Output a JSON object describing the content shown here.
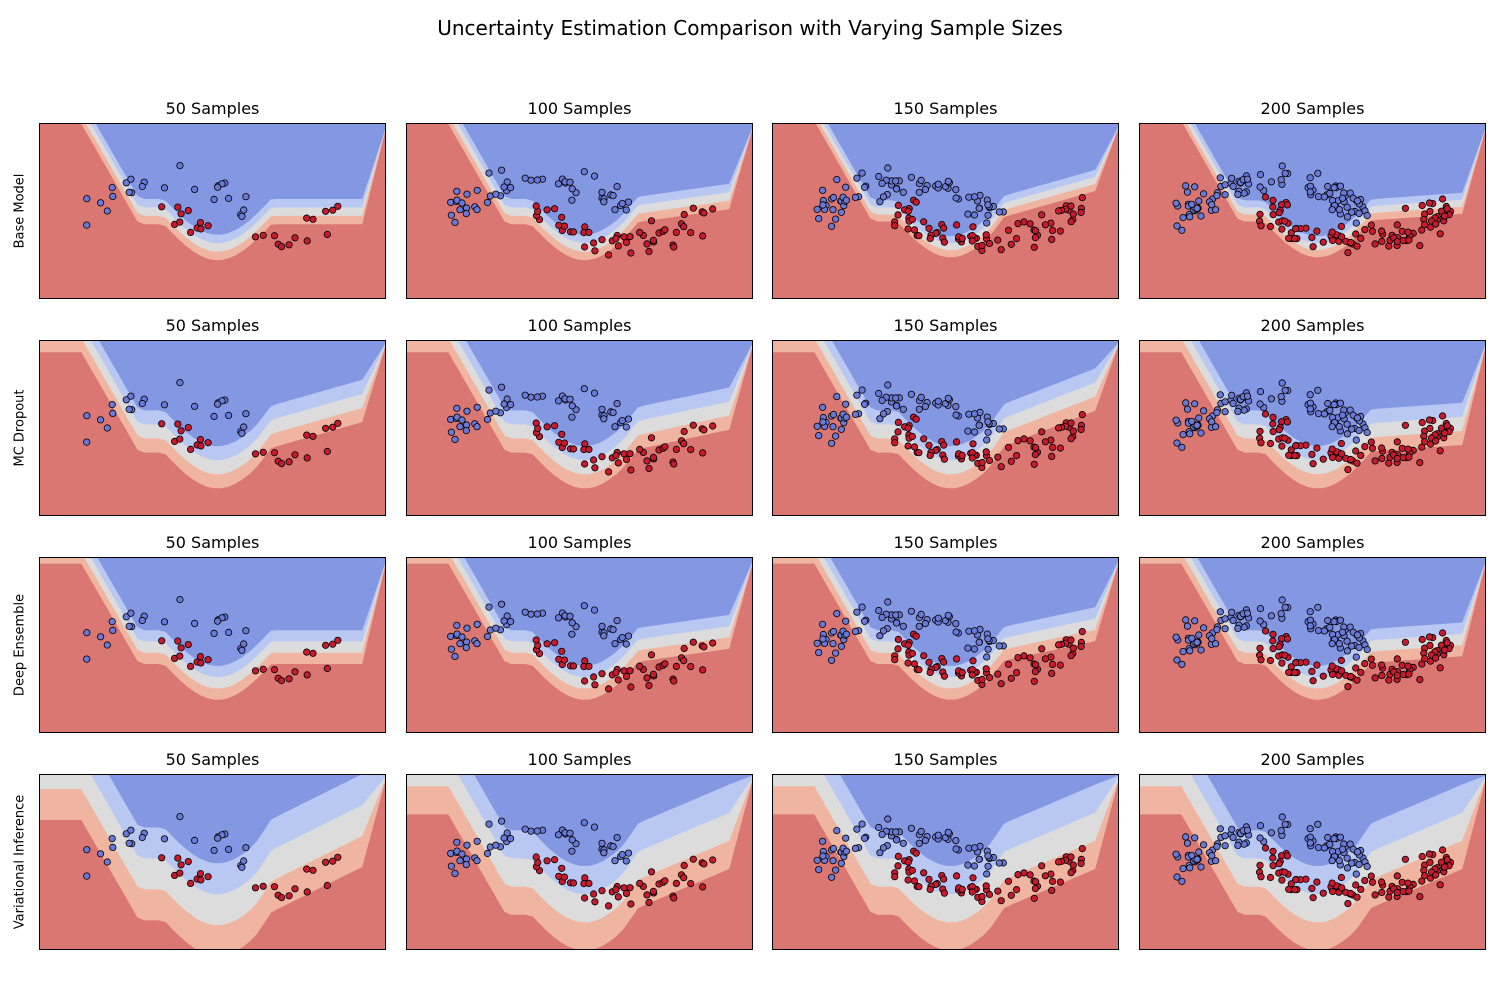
{
  "figure": {
    "title": "Uncertainty Estimation Comparison with Varying Sample Sizes"
  },
  "colors": {
    "class0_region": "#8497e2",
    "class1_region": "#db7772",
    "class0_point": "#6a79d6",
    "class1_point": "#c41b2f",
    "boundary_light": "#dddcdc",
    "point_edge": "#000000"
  },
  "chart_data": {
    "type": "scatter",
    "subtype": "classification-uncertainty-contour-grid",
    "grid": {
      "rows": 4,
      "cols": 4
    },
    "x_range": [
      -1.6,
      2.6
    ],
    "y_range": [
      -1.1,
      1.6
    ],
    "axes_ticks": "none",
    "legend": "none",
    "row_labels": [
      "Base Model",
      "MC Dropout",
      "Deep Ensemble",
      "Variational Inference"
    ],
    "column_titles": [
      "50 Samples",
      "100 Samples",
      "150 Samples",
      "200 Samples"
    ],
    "sample_sizes": [
      50,
      100,
      150,
      200
    ],
    "dataset": "two interleaving half-moons (class 0 = upper arc, class 1 = lower arc)",
    "panels": [
      {
        "row": 0,
        "col": 0,
        "method": "Base Model",
        "samples": 50,
        "uncertainty_band": 0.06,
        "boundary_tilt": 0.0
      },
      {
        "row": 0,
        "col": 1,
        "method": "Base Model",
        "samples": 100,
        "uncertainty_band": 0.06,
        "boundary_tilt": 0.2
      },
      {
        "row": 0,
        "col": 2,
        "method": "Base Model",
        "samples": 150,
        "uncertainty_band": 0.05,
        "boundary_tilt": 0.4
      },
      {
        "row": 0,
        "col": 3,
        "method": "Base Model",
        "samples": 200,
        "uncertainty_band": 0.05,
        "boundary_tilt": 0.1
      },
      {
        "row": 1,
        "col": 0,
        "method": "MC Dropout",
        "samples": 50,
        "uncertainty_band": 0.1,
        "boundary_tilt": 0.4
      },
      {
        "row": 1,
        "col": 1,
        "method": "MC Dropout",
        "samples": 100,
        "uncertainty_band": 0.1,
        "boundary_tilt": 0.3
      },
      {
        "row": 1,
        "col": 2,
        "method": "MC Dropout",
        "samples": 150,
        "uncertainty_band": 0.1,
        "boundary_tilt": 0.55
      },
      {
        "row": 1,
        "col": 3,
        "method": "MC Dropout",
        "samples": 200,
        "uncertainty_band": 0.1,
        "boundary_tilt": 0.1
      },
      {
        "row": 2,
        "col": 0,
        "method": "Deep Ensemble",
        "samples": 50,
        "uncertainty_band": 0.08,
        "boundary_tilt": 0.0
      },
      {
        "row": 2,
        "col": 1,
        "method": "Deep Ensemble",
        "samples": 100,
        "uncertainty_band": 0.08,
        "boundary_tilt": 0.2
      },
      {
        "row": 2,
        "col": 2,
        "method": "Deep Ensemble",
        "samples": 150,
        "uncertainty_band": 0.08,
        "boundary_tilt": 0.3
      },
      {
        "row": 2,
        "col": 3,
        "method": "Deep Ensemble",
        "samples": 200,
        "uncertainty_band": 0.08,
        "boundary_tilt": 0.1
      },
      {
        "row": 3,
        "col": 0,
        "method": "Variational Inference",
        "samples": 50,
        "uncertainty_band": 0.22,
        "boundary_tilt": 0.7
      },
      {
        "row": 3,
        "col": 1,
        "method": "Variational Inference",
        "samples": 100,
        "uncertainty_band": 0.2,
        "boundary_tilt": 0.6
      },
      {
        "row": 3,
        "col": 2,
        "method": "Variational Inference",
        "samples": 150,
        "uncertainty_band": 0.2,
        "boundary_tilt": 0.6
      },
      {
        "row": 3,
        "col": 3,
        "method": "Variational Inference",
        "samples": 200,
        "uncertainty_band": 0.2,
        "boundary_tilt": 0.6
      }
    ]
  }
}
